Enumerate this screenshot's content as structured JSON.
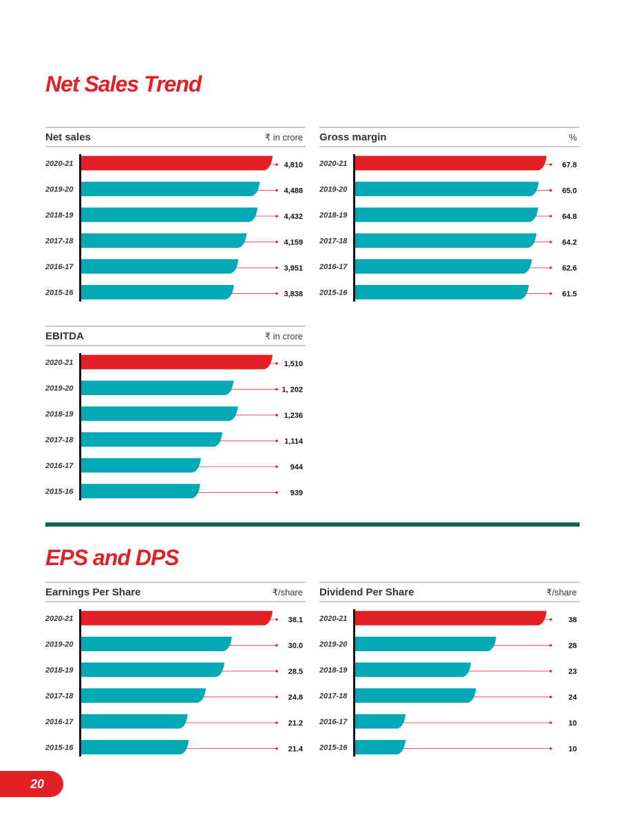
{
  "page": {
    "section1_title": "Net Sales Trend",
    "section2_title": "EPS and DPS",
    "page_number": "20"
  },
  "colors": {
    "highlight": "#e31e24",
    "bar": "#00a9b5",
    "divider": "#00694f",
    "rule": "#9a9a9a",
    "text": "#333333"
  },
  "chart_data": [
    {
      "id": "net-sales",
      "type": "bar",
      "orientation": "horizontal",
      "title": "Net sales",
      "unit": "₹ in crore",
      "categories": [
        "2020-21",
        "2019-20",
        "2018-19",
        "2017-18",
        "2016-17",
        "2015-16"
      ],
      "values": [
        4810,
        4488,
        4432,
        4159,
        3951,
        3838
      ],
      "labels": [
        "4,810",
        "4,488",
        "4,432",
        "4,159",
        "3,951",
        "3,838"
      ],
      "xlim": [
        0,
        4810
      ],
      "highlight": "2020-21"
    },
    {
      "id": "gross-margin",
      "type": "bar",
      "orientation": "horizontal",
      "title": "Gross margin",
      "unit": "%",
      "categories": [
        "2020-21",
        "2019-20",
        "2018-19",
        "2017-18",
        "2016-17",
        "2015-16"
      ],
      "values": [
        67.8,
        65.0,
        64.8,
        64.2,
        62.6,
        61.5
      ],
      "labels": [
        "67.8",
        "65.0",
        "64.8",
        "64.2",
        "62.6",
        "61.5"
      ],
      "xlim": [
        0,
        67.8
      ],
      "highlight": "2020-21"
    },
    {
      "id": "ebitda",
      "type": "bar",
      "orientation": "horizontal",
      "title": "EBITDA",
      "unit": "₹ in crore",
      "categories": [
        "2020-21",
        "2019-20",
        "2018-19",
        "2017-18",
        "2016-17",
        "2015-16"
      ],
      "values": [
        1510,
        1202,
        1236,
        1114,
        944,
        939
      ],
      "labels": [
        "1,510",
        "1, 202",
        "1,236",
        "1,114",
        "944",
        "939"
      ],
      "xlim": [
        0,
        1510
      ],
      "highlight": "2020-21"
    },
    {
      "id": "eps",
      "type": "bar",
      "orientation": "horizontal",
      "title": "Earnings Per Share",
      "unit": "₹/share",
      "categories": [
        "2020-21",
        "2019-20",
        "2018-19",
        "2017-18",
        "2016-17",
        "2015-16"
      ],
      "values": [
        38.1,
        30.0,
        28.5,
        24.8,
        21.2,
        21.4
      ],
      "labels": [
        "38.1",
        "30.0",
        "28.5",
        "24.8",
        "21.2",
        "21.4"
      ],
      "xlim": [
        0,
        38.1
      ],
      "highlight": "2020-21"
    },
    {
      "id": "dps",
      "type": "bar",
      "orientation": "horizontal",
      "title": "Dividend Per Share",
      "unit": "₹/share",
      "categories": [
        "2020-21",
        "2019-20",
        "2018-19",
        "2017-18",
        "2016-17",
        "2015-16"
      ],
      "values": [
        38,
        28,
        23,
        24,
        10,
        10
      ],
      "labels": [
        "38",
        "28",
        "23",
        "24",
        "10",
        "10"
      ],
      "xlim": [
        0,
        38
      ],
      "highlight": "2020-21"
    }
  ]
}
